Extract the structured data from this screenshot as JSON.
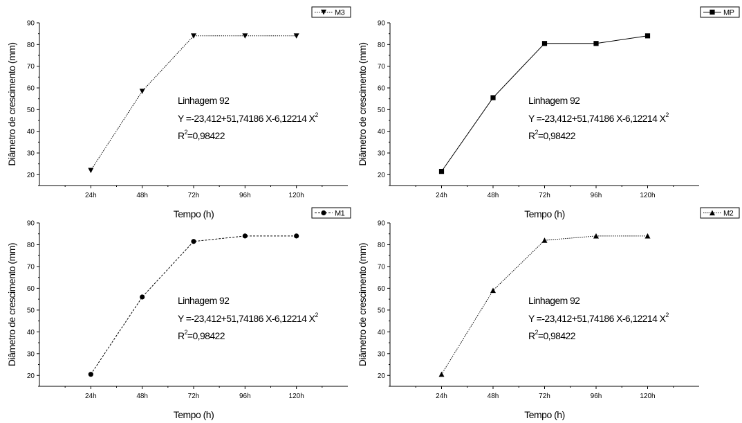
{
  "chart_data": [
    {
      "type": "line",
      "x": [
        "24h",
        "48h",
        "72h",
        "96h",
        "120h"
      ],
      "series": [
        {
          "name": "M3",
          "values": [
            22,
            58.5,
            84,
            84,
            84
          ],
          "marker": "triangle-down",
          "dash": "dotted"
        }
      ],
      "xlabel": "Tempo (h)",
      "ylabel": "Diâmetro de crescimento (mm)",
      "ylim": [
        15,
        90
      ],
      "yticks": [
        20,
        30,
        40,
        50,
        60,
        70,
        80,
        90
      ],
      "annotation": {
        "line1": "Linhagem 92",
        "line2a": "Y =-23,412+51,74186 X-6,12214 X",
        "line2sup": "2",
        "line3a": "R",
        "line3sup": "2",
        "line3b": "=0,98422"
      },
      "legend_position": "top-right",
      "grid": false
    },
    {
      "type": "line",
      "x": [
        "24h",
        "48h",
        "72h",
        "96h",
        "120h"
      ],
      "series": [
        {
          "name": "MP",
          "values": [
            21.5,
            55.5,
            80.5,
            80.5,
            84
          ],
          "marker": "square",
          "dash": "solid"
        }
      ],
      "xlabel": "Tempo (h)",
      "ylabel": "Diâmetro de crescimento (mm)",
      "ylim": [
        15,
        90
      ],
      "yticks": [
        20,
        30,
        40,
        50,
        60,
        70,
        80,
        90
      ],
      "annotation": {
        "line1": "Linhagem 92",
        "line2a": "Y =-23,412+51,74186 X-6,12214 X",
        "line2sup": "2",
        "line3a": "R",
        "line3sup": "2",
        "line3b": "=0,98422"
      },
      "legend_position": "top-right",
      "grid": false
    },
    {
      "type": "line",
      "x": [
        "24h",
        "48h",
        "72h",
        "96h",
        "120h"
      ],
      "series": [
        {
          "name": "M1",
          "values": [
            20.5,
            56,
            81.5,
            84,
            84
          ],
          "marker": "circle",
          "dash": "dashed"
        }
      ],
      "xlabel": "Tempo (h)",
      "ylabel": "Diâmetro de crescimento (mm)",
      "ylim": [
        15,
        90
      ],
      "yticks": [
        20,
        30,
        40,
        50,
        60,
        70,
        80,
        90
      ],
      "annotation": {
        "line1": "Linhagem 92",
        "line2a": "Y =-23,412+51,74186 X-6,12214 X",
        "line2sup": "2",
        "line3a": "R",
        "line3sup": "2",
        "line3b": "=0,98422"
      },
      "legend_position": "top-right",
      "grid": false
    },
    {
      "type": "line",
      "x": [
        "24h",
        "48h",
        "72h",
        "96h",
        "120h"
      ],
      "series": [
        {
          "name": "M2",
          "values": [
            20.5,
            59,
            82,
            84,
            84
          ],
          "marker": "triangle-up",
          "dash": "dotted"
        }
      ],
      "xlabel": "Tempo (h)",
      "ylabel": "Diâmetro de crescimento (mm)",
      "ylim": [
        15,
        90
      ],
      "yticks": [
        20,
        30,
        40,
        50,
        60,
        70,
        80,
        90
      ],
      "annotation": {
        "line1": "Linhagem 92",
        "line2a": "Y =-23,412+51,74186 X-6,12214 X",
        "line2sup": "2",
        "line3a": "R",
        "line3sup": "2",
        "line3b": "=0,98422"
      },
      "legend_position": "top-right",
      "grid": false
    }
  ]
}
